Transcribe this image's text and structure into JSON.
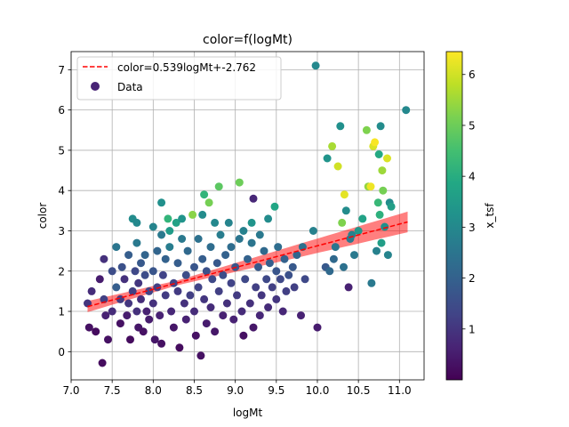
{
  "chart_data": {
    "type": "scatter",
    "title": "color=f(logMt)",
    "xlabel": "logMt",
    "ylabel": "color",
    "xlim": [
      7.0,
      11.3
    ],
    "ylim": [
      -0.7,
      7.45
    ],
    "xticks": [
      7.0,
      7.5,
      8.0,
      8.5,
      9.0,
      9.5,
      10.0,
      10.5,
      11.0
    ],
    "yticks": [
      0,
      1,
      2,
      3,
      4,
      5,
      6,
      7
    ],
    "xtick_labels": [
      "7.0",
      "7.5",
      "8.0",
      "8.5",
      "9.0",
      "9.5",
      "10.0",
      "10.5",
      "11.0"
    ],
    "ytick_labels": [
      "0",
      "1",
      "2",
      "3",
      "4",
      "5",
      "6",
      "7"
    ],
    "grid": true,
    "legend_position": "top-left",
    "fit": {
      "label": "color=0.539logMt+-2.762",
      "slope": 0.539,
      "intercept": -2.762,
      "x_range": [
        7.2,
        11.1
      ],
      "band_halfwidth_center": 0.06,
      "band_halfwidth_growth": 0.07,
      "band_center_x": 8.3,
      "line_color": "#ff0000",
      "band_color": "#ff0000"
    },
    "scatter_label": "Data",
    "colorbar": {
      "label": "x_tsf",
      "range": [
        0,
        6.45
      ],
      "ticks": [
        1,
        2,
        3,
        4,
        5,
        6
      ],
      "tick_labels": [
        "1",
        "2",
        "3",
        "4",
        "5",
        "6"
      ],
      "colormap": "viridis"
    },
    "points": [
      [
        7.2,
        1.2,
        1.0
      ],
      [
        7.25,
        1.5,
        0.8
      ],
      [
        7.22,
        0.6,
        0.3
      ],
      [
        7.3,
        0.5,
        0.2
      ],
      [
        7.35,
        1.8,
        0.5
      ],
      [
        7.4,
        2.3,
        0.9
      ],
      [
        7.4,
        1.3,
        1.2
      ],
      [
        7.42,
        0.9,
        0.6
      ],
      [
        7.45,
        0.3,
        0.3
      ],
      [
        7.38,
        -0.28,
        0.2
      ],
      [
        7.5,
        2.0,
        1.5
      ],
      [
        7.5,
        1.0,
        0.8
      ],
      [
        7.55,
        1.6,
        1.9
      ],
      [
        7.55,
        2.6,
        2.5
      ],
      [
        7.6,
        0.7,
        0.3
      ],
      [
        7.6,
        1.3,
        1.1
      ],
      [
        7.62,
        2.1,
        1.6
      ],
      [
        7.65,
        1.8,
        0.9
      ],
      [
        7.68,
        0.9,
        0.5
      ],
      [
        7.7,
        1.2,
        1.0
      ],
      [
        7.7,
        2.4,
        1.9
      ],
      [
        7.72,
        0.3,
        0.2
      ],
      [
        7.75,
        3.3,
        3.1
      ],
      [
        7.75,
        1.5,
        1.2
      ],
      [
        7.78,
        2.0,
        1.4
      ],
      [
        7.8,
        3.2,
        3.0
      ],
      [
        7.8,
        2.7,
        2.6
      ],
      [
        7.8,
        1.0,
        0.9
      ],
      [
        7.82,
        0.6,
        0.4
      ],
      [
        7.82,
        1.7,
        1.0
      ],
      [
        7.85,
        2.2,
        1.8
      ],
      [
        7.85,
        1.3,
        0.8
      ],
      [
        7.88,
        0.5,
        0.3
      ],
      [
        7.9,
        1.9,
        1.5
      ],
      [
        7.9,
        2.4,
        2.1
      ],
      [
        7.92,
        1.0,
        0.6
      ],
      [
        7.95,
        1.5,
        1.3
      ],
      [
        7.95,
        0.8,
        0.5
      ],
      [
        8.0,
        3.1,
        2.9
      ],
      [
        8.0,
        2.0,
        1.7
      ],
      [
        8.0,
        1.2,
        0.9
      ],
      [
        8.02,
        0.3,
        0.4
      ],
      [
        8.05,
        2.5,
        2.1
      ],
      [
        8.05,
        1.6,
        1.2
      ],
      [
        8.08,
        0.9,
        0.6
      ],
      [
        8.1,
        3.7,
        3.2
      ],
      [
        8.1,
        2.9,
        2.6
      ],
      [
        8.1,
        0.2,
        0.3
      ],
      [
        8.12,
        1.9,
        1.3
      ],
      [
        8.15,
        2.3,
        2.0
      ],
      [
        8.15,
        1.4,
        1.1
      ],
      [
        8.18,
        3.3,
        4.2
      ],
      [
        8.2,
        3.0,
        3.5
      ],
      [
        8.2,
        2.6,
        2.7
      ],
      [
        8.22,
        1.0,
        0.7
      ],
      [
        8.25,
        1.7,
        1.3
      ],
      [
        8.25,
        0.6,
        0.4
      ],
      [
        8.28,
        3.2,
        3.7
      ],
      [
        8.3,
        2.2,
        1.9
      ],
      [
        8.3,
        1.5,
        1.1
      ],
      [
        8.32,
        0.1,
        0.2
      ],
      [
        8.35,
        3.3,
        3.3
      ],
      [
        8.35,
        2.8,
        2.6
      ],
      [
        8.38,
        1.2,
        0.9
      ],
      [
        8.4,
        1.9,
        1.5
      ],
      [
        8.4,
        0.8,
        0.6
      ],
      [
        8.42,
        2.5,
        2.2
      ],
      [
        8.45,
        1.4,
        1.2
      ],
      [
        8.48,
        3.4,
        5.3
      ],
      [
        8.5,
        2.1,
        1.7
      ],
      [
        8.5,
        1.0,
        0.8
      ],
      [
        8.52,
        0.4,
        0.3
      ],
      [
        8.55,
        2.8,
        2.4
      ],
      [
        8.55,
        1.6,
        1.3
      ],
      [
        8.58,
        -0.1,
        0.3
      ],
      [
        8.6,
        3.4,
        3.1
      ],
      [
        8.6,
        2.3,
        1.9
      ],
      [
        8.62,
        3.9,
        4.2
      ],
      [
        8.62,
        1.3,
        1.0
      ],
      [
        8.65,
        0.7,
        0.5
      ],
      [
        8.65,
        2.0,
        1.6
      ],
      [
        8.68,
        3.7,
        5.1
      ],
      [
        8.7,
        2.6,
        2.3
      ],
      [
        8.7,
        1.1,
        0.8
      ],
      [
        8.72,
        1.8,
        1.4
      ],
      [
        8.75,
        3.2,
        3.0
      ],
      [
        8.75,
        0.5,
        0.4
      ],
      [
        8.78,
        2.2,
        1.8
      ],
      [
        8.8,
        4.1,
        4.8
      ],
      [
        8.8,
        1.5,
        1.2
      ],
      [
        8.82,
        2.9,
        2.7
      ],
      [
        8.85,
        0.9,
        0.6
      ],
      [
        8.85,
        1.9,
        1.5
      ],
      [
        8.88,
        2.4,
        2.0
      ],
      [
        8.9,
        1.2,
        0.9
      ],
      [
        8.92,
        3.2,
        2.9
      ],
      [
        8.95,
        1.7,
        1.3
      ],
      [
        8.95,
        2.6,
        2.3
      ],
      [
        8.98,
        0.8,
        0.6
      ],
      [
        9.0,
        2.1,
        1.7
      ],
      [
        9.02,
        1.4,
        1.1
      ],
      [
        9.05,
        4.2,
        5.0
      ],
      [
        9.05,
        2.8,
        2.5
      ],
      [
        9.08,
        1.0,
        0.8
      ],
      [
        9.1,
        3.0,
        2.8
      ],
      [
        9.1,
        0.4,
        0.3
      ],
      [
        9.12,
        1.8,
        1.4
      ],
      [
        9.15,
        2.3,
        2.0
      ],
      [
        9.18,
        1.2,
        0.9
      ],
      [
        9.2,
        3.2,
        3.3
      ],
      [
        9.2,
        2.7,
        2.5
      ],
      [
        9.22,
        3.8,
        0.7
      ],
      [
        9.22,
        0.6,
        0.4
      ],
      [
        9.25,
        1.6,
        1.2
      ],
      [
        9.28,
        2.1,
        1.8
      ],
      [
        9.3,
        0.9,
        0.7
      ],
      [
        9.3,
        2.9,
        2.6
      ],
      [
        9.32,
        1.4,
        1.0
      ],
      [
        9.35,
        2.5,
        2.2
      ],
      [
        9.38,
        1.8,
        1.4
      ],
      [
        9.4,
        1.1,
        0.8
      ],
      [
        9.4,
        3.3,
        3.1
      ],
      [
        9.42,
        2.2,
        1.9
      ],
      [
        9.45,
        1.6,
        1.2
      ],
      [
        9.48,
        3.6,
        3.8
      ],
      [
        9.5,
        2.0,
        1.7
      ],
      [
        9.5,
        1.3,
        1.0
      ],
      [
        9.52,
        2.6,
        2.3
      ],
      [
        9.55,
        1.8,
        1.4
      ],
      [
        9.58,
        1.0,
        0.7
      ],
      [
        9.6,
        2.3,
        2.0
      ],
      [
        9.62,
        1.5,
        1.2
      ],
      [
        9.65,
        1.9,
        1.6
      ],
      [
        9.7,
        2.1,
        1.8
      ],
      [
        9.72,
        1.6,
        1.2
      ],
      [
        9.75,
        2.4,
        2.1
      ],
      [
        9.8,
        0.9,
        0.6
      ],
      [
        9.82,
        2.6,
        2.4
      ],
      [
        9.85,
        1.8,
        1.4
      ],
      [
        9.95,
        3.0,
        2.8
      ],
      [
        9.98,
        7.1,
        3.0
      ],
      [
        10.0,
        0.6,
        0.5
      ],
      [
        10.1,
        2.1,
        1.8
      ],
      [
        10.12,
        4.8,
        3.3
      ],
      [
        10.15,
        2.0,
        2.2
      ],
      [
        10.18,
        5.1,
        5.6
      ],
      [
        10.2,
        2.3,
        2.2
      ],
      [
        10.22,
        2.6,
        2.5
      ],
      [
        10.25,
        4.6,
        6.0
      ],
      [
        10.28,
        5.6,
        3.2
      ],
      [
        10.3,
        3.2,
        5.2
      ],
      [
        10.32,
        2.1,
        2.4
      ],
      [
        10.33,
        3.9,
        6.2
      ],
      [
        10.35,
        3.5,
        3.1
      ],
      [
        10.38,
        1.6,
        0.6
      ],
      [
        10.4,
        2.8,
        2.6
      ],
      [
        10.42,
        2.9,
        2.8
      ],
      [
        10.45,
        2.4,
        2.6
      ],
      [
        10.5,
        3.0,
        3.4
      ],
      [
        10.55,
        3.3,
        3.7
      ],
      [
        10.6,
        5.5,
        5.2
      ],
      [
        10.62,
        4.1,
        5.4
      ],
      [
        10.65,
        4.1,
        6.3
      ],
      [
        10.66,
        1.7,
        2.6
      ],
      [
        10.68,
        5.1,
        6.1
      ],
      [
        10.7,
        5.2,
        6.4
      ],
      [
        10.72,
        2.5,
        2.8
      ],
      [
        10.74,
        3.7,
        4.3
      ],
      [
        10.75,
        4.9,
        3.9
      ],
      [
        10.76,
        3.4,
        4.1
      ],
      [
        10.77,
        5.6,
        3.1
      ],
      [
        10.78,
        2.7,
        3.6
      ],
      [
        10.79,
        4.5,
        5.5
      ],
      [
        10.8,
        4.0,
        5.1
      ],
      [
        10.82,
        3.1,
        3.2
      ],
      [
        10.85,
        4.8,
        6.1
      ],
      [
        10.86,
        2.4,
        2.9
      ],
      [
        10.88,
        3.7,
        3.1
      ],
      [
        10.9,
        3.6,
        3.6
      ],
      [
        11.08,
        6.0,
        3.0
      ]
    ]
  }
}
